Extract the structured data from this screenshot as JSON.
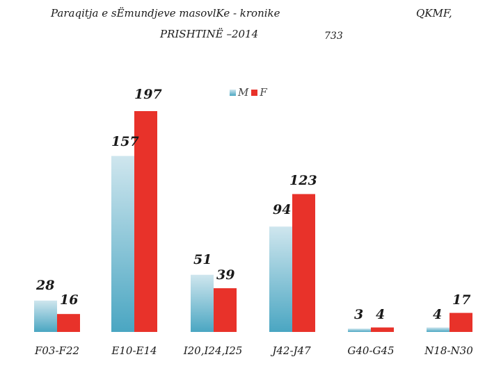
{
  "header": {
    "title_line1": "Paraqitja e sËmundjeve masovlKe - kronike",
    "title_line2": "PRISHTINË –2014",
    "right_label": "QKMF,",
    "total": "733"
  },
  "legend": {
    "items": [
      "M",
      "F"
    ]
  },
  "colors": {
    "M_top": "#cfe6ee",
    "M_bottom": "#4aa6c2",
    "F": "#e8322a"
  },
  "chart_data": {
    "type": "bar",
    "categories": [
      "F03-F22",
      "E10-E14",
      "I20,I24,I25",
      "J42-J47",
      "G40-G45",
      "N18-N30"
    ],
    "series": [
      {
        "name": "M",
        "values": [
          28,
          157,
          51,
          94,
          3,
          4
        ]
      },
      {
        "name": "F",
        "values": [
          16,
          197,
          39,
          123,
          4,
          17
        ]
      }
    ],
    "title": "Paraqitja e sËmundjeve masovlKe - kronike PRISHTINË –2014",
    "legend_position": "top-center",
    "grid": false
  }
}
